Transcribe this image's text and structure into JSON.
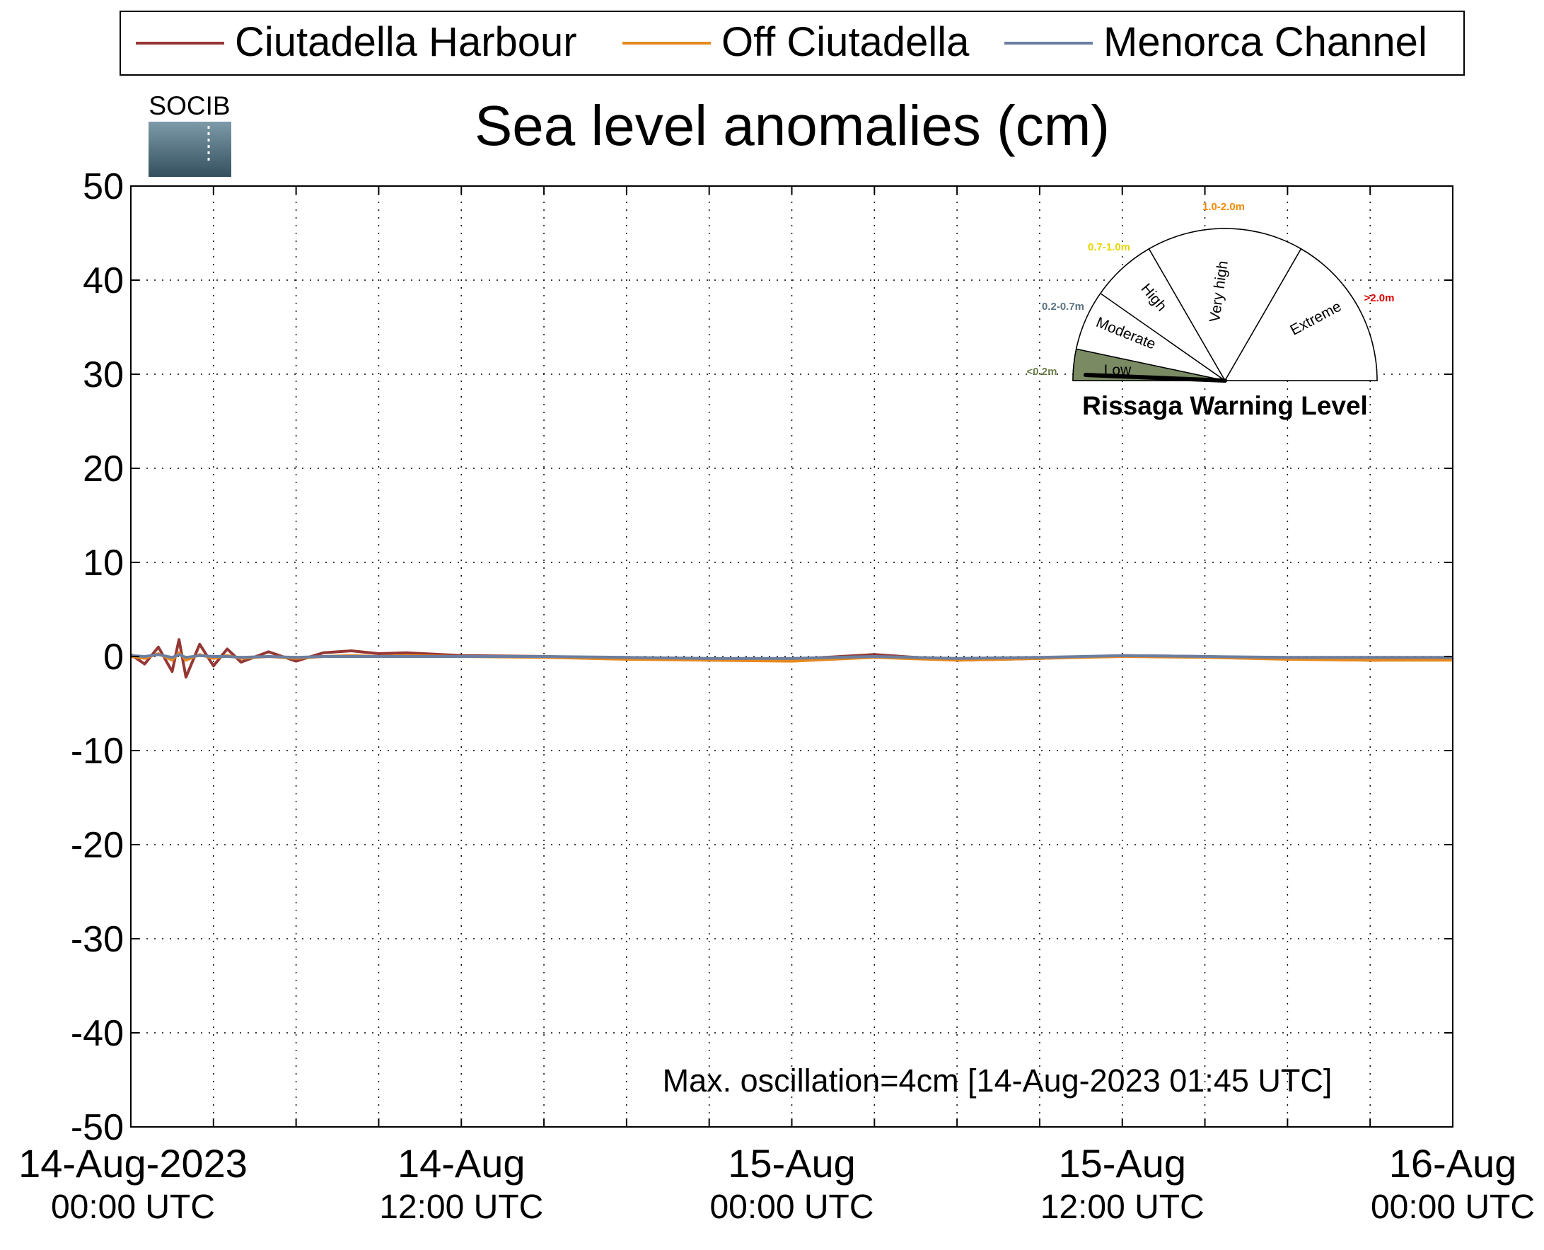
{
  "chart_data": {
    "type": "line",
    "title": "Sea level anomalies (cm)",
    "xlabel": "",
    "ylabel": "",
    "ylim": [
      -50,
      50
    ],
    "yticks": [
      50,
      40,
      30,
      20,
      10,
      0,
      -10,
      -20,
      -30,
      -40,
      -50
    ],
    "ytick_labels": [
      "50",
      "40",
      "30",
      "20",
      "10",
      "0",
      "-10",
      "-20",
      "-30",
      "-40",
      "-50"
    ],
    "xlim": [
      "2023-08-14 00:00",
      "2023-08-16 00:00"
    ],
    "xtick_labels": [
      {
        "date": "14-Aug-2023",
        "time": "00:00 UTC"
      },
      {
        "date": "14-Aug",
        "time": "12:00 UTC"
      },
      {
        "date": "15-Aug",
        "time": "00:00 UTC"
      },
      {
        "date": "15-Aug",
        "time": "12:00 UTC"
      },
      {
        "date": "16-Aug",
        "time": "00:00 UTC"
      }
    ],
    "grid": true,
    "legend_position": "top",
    "x": [
      "2023-08-14 00:00",
      "2023-08-14 00:30",
      "2023-08-14 01:00",
      "2023-08-14 01:30",
      "2023-08-14 01:45",
      "2023-08-14 02:00",
      "2023-08-14 02:30",
      "2023-08-14 03:00",
      "2023-08-14 03:30",
      "2023-08-14 04:00",
      "2023-08-14 05:00",
      "2023-08-14 06:00",
      "2023-08-14 07:00",
      "2023-08-14 08:00",
      "2023-08-14 09:00",
      "2023-08-14 10:00",
      "2023-08-14 12:00",
      "2023-08-14 15:00",
      "2023-08-14 18:00",
      "2023-08-14 21:00",
      "2023-08-15 00:00",
      "2023-08-15 03:00",
      "2023-08-15 06:00",
      "2023-08-15 09:00",
      "2023-08-15 12:00",
      "2023-08-15 15:00",
      "2023-08-15 18:00",
      "2023-08-15 21:00",
      "2023-08-16 00:00"
    ],
    "series": [
      {
        "name": "Ciutadella Harbour",
        "color": "#953735",
        "values": [
          0.2,
          -0.8,
          1.0,
          -1.6,
          1.8,
          -2.2,
          1.3,
          -1.0,
          0.8,
          -0.6,
          0.5,
          -0.5,
          0.4,
          0.6,
          0.3,
          0.4,
          0.1,
          0.0,
          -0.2,
          -0.4,
          -0.3,
          0.2,
          -0.4,
          -0.2,
          0.1,
          0.0,
          -0.2,
          -0.4,
          -0.3
        ]
      },
      {
        "name": "Off Ciutadella",
        "color": "#e6891e",
        "values": [
          0.0,
          -0.2,
          0.3,
          -0.4,
          0.4,
          -0.4,
          0.2,
          -0.2,
          0.1,
          -0.2,
          0.0,
          -0.2,
          0.0,
          0.1,
          0.0,
          0.1,
          0.0,
          -0.1,
          -0.3,
          -0.4,
          -0.5,
          -0.1,
          -0.4,
          -0.2,
          0.0,
          -0.1,
          -0.3,
          -0.4,
          -0.4
        ]
      },
      {
        "name": "Menorca Channel",
        "color": "#6b7ea0",
        "values": [
          0.1,
          0.0,
          0.2,
          -0.1,
          0.2,
          -0.1,
          0.1,
          0.0,
          0.0,
          -0.1,
          0.0,
          -0.1,
          0.0,
          0.0,
          0.0,
          0.0,
          0.0,
          0.0,
          -0.1,
          -0.2,
          -0.2,
          0.0,
          -0.2,
          -0.1,
          0.1,
          0.0,
          -0.1,
          -0.1,
          -0.1
        ]
      }
    ],
    "annotation": "Max. oscillation=4cm [14-Aug-2023 01:45 UTC]",
    "annotation_color": "#953735"
  },
  "logo": {
    "text": "SOCIB",
    "color": "#6fc3dc"
  },
  "gauge": {
    "title": "Rissaga Warning Level",
    "current_level": "Low",
    "active_color": "#7a8a63",
    "sectors": [
      {
        "label": "Low",
        "range": "<0.2m",
        "range_color": "#6d7f4c"
      },
      {
        "label": "Moderate",
        "range": "0.2-0.7m",
        "range_color": "#5b7280"
      },
      {
        "label": "High",
        "range": "0.7-1.0m",
        "range_color": "#e8d400"
      },
      {
        "label": "Very high",
        "range": "1.0-2.0m",
        "range_color": "#f08a00"
      },
      {
        "label": "Extreme",
        "range": ">2.0m",
        "range_color": "#e00000"
      }
    ]
  }
}
